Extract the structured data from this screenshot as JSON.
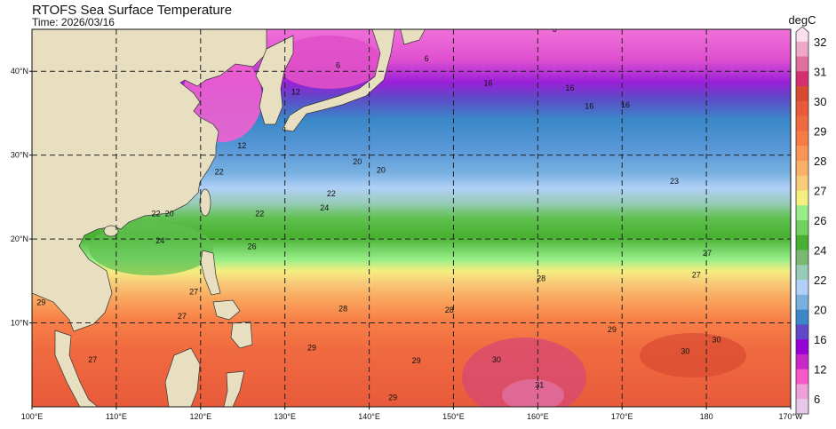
{
  "header": {
    "title": "RTOFS Sea Surface Temperature",
    "time": "Time: 2026/03/16"
  },
  "map": {
    "extent_lon": [
      100,
      190
    ],
    "extent_lat": [
      0,
      45
    ],
    "land_color": "#e8dfc0",
    "grid": "dashed",
    "x_ticks": [
      {
        "lon": 100,
        "label": "100°E"
      },
      {
        "lon": 110,
        "label": "110°E"
      },
      {
        "lon": 120,
        "label": "120°E"
      },
      {
        "lon": 130,
        "label": "130°E"
      },
      {
        "lon": 140,
        "label": "140°E"
      },
      {
        "lon": 150,
        "label": "150°E"
      },
      {
        "lon": 160,
        "label": "160°E"
      },
      {
        "lon": 170,
        "label": "170°E"
      },
      {
        "lon": 180,
        "label": "180"
      },
      {
        "lon": 190,
        "label": "170°W"
      }
    ],
    "y_ticks": [
      {
        "lat": 40,
        "label": "40°N"
      },
      {
        "lat": 30,
        "label": "30°N"
      },
      {
        "lat": 20,
        "label": "20°N"
      },
      {
        "lat": 10,
        "label": "10°N"
      }
    ],
    "contour_labels": [
      {
        "text": "12",
        "lon": 131.3,
        "lat": 37.2
      },
      {
        "text": "12",
        "lon": 124.9,
        "lat": 30.8
      },
      {
        "text": "16",
        "lon": 154.1,
        "lat": 38.3
      },
      {
        "text": "16",
        "lon": 163.8,
        "lat": 37.7
      },
      {
        "text": "16",
        "lon": 166.1,
        "lat": 35.5
      },
      {
        "text": "16",
        "lon": 170.4,
        "lat": 35.7
      },
      {
        "text": "20",
        "lon": 141.4,
        "lat": 27.9
      },
      {
        "text": "20",
        "lon": 138.6,
        "lat": 28.9
      },
      {
        "text": "20",
        "lon": 116.3,
        "lat": 22.7
      },
      {
        "text": "22",
        "lon": 122.2,
        "lat": 27.7
      },
      {
        "text": "22",
        "lon": 127.0,
        "lat": 22.7
      },
      {
        "text": "22",
        "lon": 135.5,
        "lat": 25.1
      },
      {
        "text": "22",
        "lon": 114.7,
        "lat": 22.7
      },
      {
        "text": "24",
        "lon": 134.7,
        "lat": 23.4
      },
      {
        "text": "24",
        "lon": 115.2,
        "lat": 19.5
      },
      {
        "text": "26",
        "lon": 126.1,
        "lat": 18.8
      },
      {
        "text": "23",
        "lon": 176.2,
        "lat": 26.6
      },
      {
        "text": "27",
        "lon": 178.8,
        "lat": 15.4
      },
      {
        "text": "27",
        "lon": 180.1,
        "lat": 18.0
      },
      {
        "text": "27",
        "lon": 107.2,
        "lat": 5.3
      },
      {
        "text": "27",
        "lon": 117.8,
        "lat": 10.5
      },
      {
        "text": "27",
        "lon": 119.2,
        "lat": 13.4
      },
      {
        "text": "28",
        "lon": 136.9,
        "lat": 11.4
      },
      {
        "text": "28",
        "lon": 160.4,
        "lat": 15.0
      },
      {
        "text": "28",
        "lon": 149.5,
        "lat": 11.2
      },
      {
        "text": "29",
        "lon": 145.6,
        "lat": 5.2
      },
      {
        "text": "29",
        "lon": 133.2,
        "lat": 6.7
      },
      {
        "text": "29",
        "lon": 142.8,
        "lat": 0.8
      },
      {
        "text": "29",
        "lon": 168.8,
        "lat": 8.9
      },
      {
        "text": "30",
        "lon": 155.1,
        "lat": 5.3
      },
      {
        "text": "30",
        "lon": 177.5,
        "lat": 6.3
      },
      {
        "text": "30",
        "lon": 181.2,
        "lat": 7.7
      },
      {
        "text": "31",
        "lon": 160.2,
        "lat": 2.3
      },
      {
        "text": "6",
        "lon": 136.3,
        "lat": 40.4
      },
      {
        "text": "6",
        "lon": 146.8,
        "lat": 41.2
      },
      {
        "text": "6",
        "lon": 162.0,
        "lat": 44.7
      },
      {
        "text": "29",
        "lon": 101.1,
        "lat": 12.1
      }
    ]
  },
  "colorbar": {
    "unit": "degC",
    "colors_top_to_bottom": [
      "#fde0ef",
      "#f0a8c8",
      "#e070a0",
      "#d43070",
      "#d84a30",
      "#e85a3a",
      "#f06a40",
      "#f87a45",
      "#fa9458",
      "#f9b068",
      "#f8cc7a",
      "#f5ee80",
      "#98ee88",
      "#70d060",
      "#48b030",
      "#78b870",
      "#98ccb8",
      "#b0d0f8",
      "#78b0e0",
      "#3a88c8",
      "#6048c8",
      "#9800d8",
      "#c828c8",
      "#f858c8",
      "#f0a0d8",
      "#e8c8e8"
    ],
    "labels": [
      "32",
      "31",
      "30",
      "29",
      "28",
      "27",
      "26",
      "24",
      "22",
      "20",
      "16",
      "12",
      "6"
    ]
  }
}
